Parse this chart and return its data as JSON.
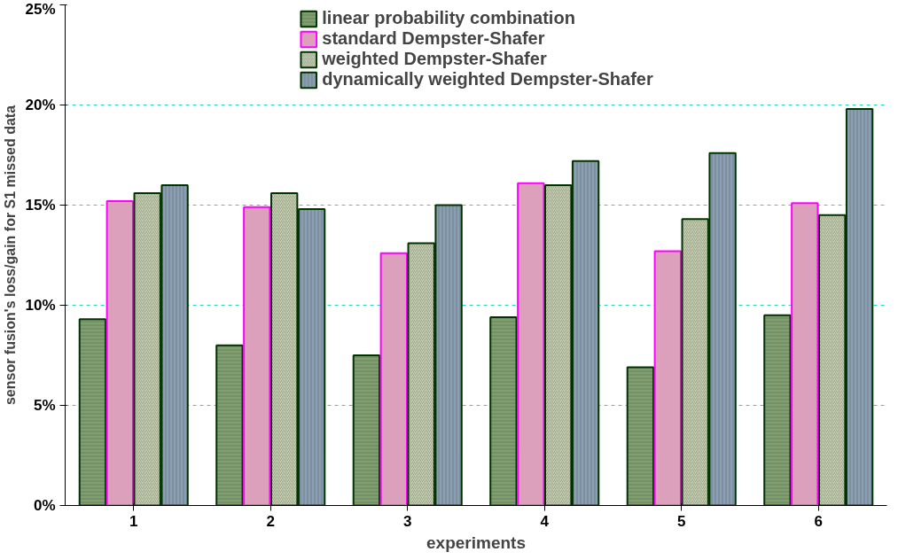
{
  "chart_data": {
    "type": "bar",
    "xlabel": "experiments",
    "ylabel": "sensor fusion's loss/gain for S1 missed data",
    "categories": [
      "1",
      "2",
      "3",
      "4",
      "5",
      "6"
    ],
    "series": [
      {
        "name": "linear probability combination",
        "color": "#7f9f6f",
        "values": [
          9.3,
          8.0,
          7.5,
          9.4,
          6.9,
          9.5
        ]
      },
      {
        "name": "standard Dempster-Shafer",
        "color": "#dca0bc",
        "values": [
          15.2,
          14.9,
          12.6,
          16.1,
          12.7,
          15.1
        ]
      },
      {
        "name": "weighted Dempster-Shafer",
        "color": "#c9d3b4",
        "values": [
          15.6,
          15.6,
          13.1,
          16.0,
          14.3,
          14.5
        ]
      },
      {
        "name": "dynamically weighted Dempster-Shafer",
        "color": "#8aa0b2",
        "values": [
          16.0,
          14.8,
          15.0,
          17.2,
          17.6,
          19.8
        ]
      }
    ],
    "ylim": [
      0,
      25
    ],
    "yticks": [
      {
        "value": 0,
        "label": "0%"
      },
      {
        "value": 5,
        "label": "5%"
      },
      {
        "value": 10,
        "label": "10%"
      },
      {
        "value": 15,
        "label": "15%"
      },
      {
        "value": 20,
        "label": "20%"
      },
      {
        "value": 25,
        "label": "25%"
      }
    ],
    "grid": "y",
    "legend": "top"
  }
}
